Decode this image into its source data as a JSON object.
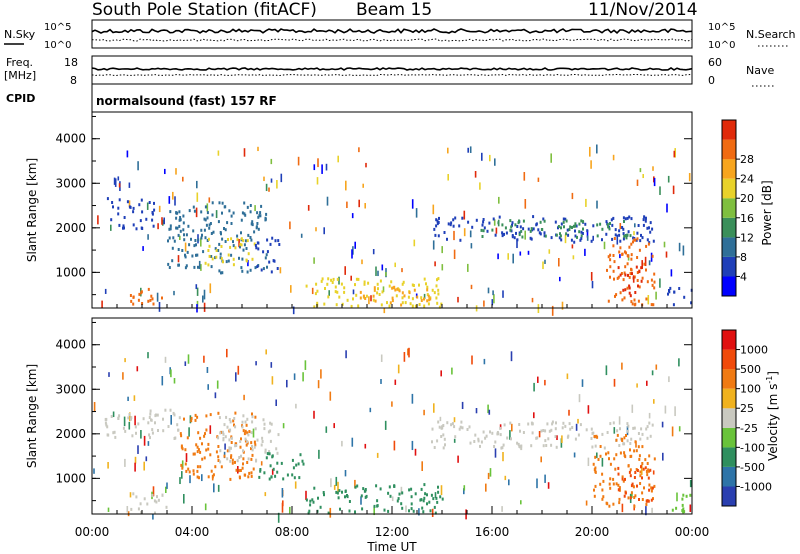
{
  "header": {
    "station": "South Pole Station (fitACF)",
    "beam": "Beam 15",
    "date": "11/Nov/2014"
  },
  "strip": {
    "nsky_label": "N.Sky",
    "nsky_ticks": [
      "10^5",
      "10^0"
    ],
    "nsearch_label": "N.Search",
    "nsearch_ticks": [
      "10^5",
      "10^0"
    ],
    "freq_label": "Freq.",
    "freq_unit": "[MHz]",
    "freq_ticks": [
      "18",
      "8"
    ],
    "nave_label": "Nave",
    "nave_ticks": [
      "60",
      "0"
    ],
    "cpid_label": "CPID",
    "cpid_value": "normalsound (fast) 157 RF"
  },
  "chart_data": [
    {
      "type": "heatmap",
      "name": "power",
      "ylabel": "Slant Range [km]",
      "yticks": [
        "1000",
        "2000",
        "3000",
        "4000"
      ],
      "ylim": [
        200,
        4600
      ],
      "xlim": [
        0,
        24
      ],
      "colorbar_label": "Power [dB]",
      "colorbar_ticks": [
        "4",
        "8",
        "12",
        "16",
        "20",
        "24",
        "28"
      ],
      "colorbar_colors": [
        "#0000ff",
        "#1f3fb8",
        "#2f6f98",
        "#3a8f5a",
        "#7fbf3f",
        "#e8d22a",
        "#f7a51e",
        "#f06b12",
        "#e02a0a"
      ],
      "regions": [
        {
          "t0": 0.5,
          "t1": 2.5,
          "r0": 2000,
          "r1": 2700,
          "color": "#1f3fb8"
        },
        {
          "t0": 1.5,
          "t1": 3.0,
          "r0": 250,
          "r1": 700,
          "color": "#f06b12"
        },
        {
          "t0": 3.0,
          "t1": 7.0,
          "r0": 1000,
          "r1": 2600,
          "color": "#2f6f98"
        },
        {
          "t0": 4.5,
          "t1": 6.5,
          "r0": 1200,
          "r1": 1800,
          "color": "#e8d22a"
        },
        {
          "t0": 6.5,
          "t1": 7.5,
          "r0": 1000,
          "r1": 1800,
          "color": "#1f3fb8"
        },
        {
          "t0": 8.5,
          "t1": 14.0,
          "r0": 250,
          "r1": 900,
          "color": "#e8d22a"
        },
        {
          "t0": 10.5,
          "t1": 13.5,
          "r0": 300,
          "r1": 700,
          "color": "#f7a51e"
        },
        {
          "t0": 13.5,
          "t1": 22.5,
          "r0": 1700,
          "r1": 2300,
          "color": "#1f3fb8"
        },
        {
          "t0": 15.5,
          "t1": 21.5,
          "r0": 1800,
          "r1": 2200,
          "color": "#3a8f5a"
        },
        {
          "t0": 20.5,
          "t1": 22.5,
          "r0": 300,
          "r1": 1800,
          "color": "#f06b12"
        },
        {
          "t0": 21.0,
          "t1": 22.0,
          "r0": 500,
          "r1": 1200,
          "color": "#e02a0a"
        },
        {
          "t0": 23.0,
          "t1": 24.0,
          "r0": 250,
          "r1": 700,
          "color": "#1f3fb8"
        }
      ]
    },
    {
      "type": "heatmap",
      "name": "velocity",
      "ylabel": "Slant Range [km]",
      "yticks": [
        "1000",
        "2000",
        "3000",
        "4000"
      ],
      "ylim": [
        200,
        4600
      ],
      "xlim": [
        0,
        24
      ],
      "xlabel": "Time UT",
      "xticks": [
        "00:00",
        "04:00",
        "08:00",
        "12:00",
        "16:00",
        "20:00",
        "00:00"
      ],
      "colorbar_label": "Velocity [m s",
      "colorbar_exp": "-1",
      "colorbar_ticks": [
        "1000",
        "500",
        "100",
        "25",
        "-25",
        "-100",
        "-500",
        "-1000"
      ],
      "colorbar_colors": [
        "#2a3fb0",
        "#2e74a8",
        "#2f8f5f",
        "#69c33a",
        "#c9c9c0",
        "#f0b21e",
        "#f07a12",
        "#f04a0a",
        "#e01010"
      ],
      "regions": [
        {
          "t0": 0.5,
          "t1": 3.5,
          "r0": 1900,
          "r1": 2600,
          "color": "#c9c9c0"
        },
        {
          "t0": 1.5,
          "t1": 3.0,
          "r0": 250,
          "r1": 700,
          "color": "#c9c9c0"
        },
        {
          "t0": 3.5,
          "t1": 6.5,
          "r0": 1000,
          "r1": 2500,
          "color": "#f07a12"
        },
        {
          "t0": 5.0,
          "t1": 7.5,
          "r0": 1400,
          "r1": 2500,
          "color": "#c9c9c0"
        },
        {
          "t0": 6.5,
          "t1": 8.5,
          "r0": 1000,
          "r1": 1600,
          "color": "#2f8f5f"
        },
        {
          "t0": 8.5,
          "t1": 14.0,
          "r0": 250,
          "r1": 900,
          "color": "#2f8f5f"
        },
        {
          "t0": 13.5,
          "t1": 22.5,
          "r0": 1700,
          "r1": 2300,
          "color": "#c9c9c0"
        },
        {
          "t0": 20.0,
          "t1": 22.5,
          "r0": 400,
          "r1": 2000,
          "color": "#f07a12"
        },
        {
          "t0": 21.0,
          "t1": 22.5,
          "r0": 500,
          "r1": 1300,
          "color": "#f04a0a"
        },
        {
          "t0": 23.0,
          "t1": 24.0,
          "r0": 250,
          "r1": 700,
          "color": "#69c33a"
        }
      ]
    }
  ]
}
